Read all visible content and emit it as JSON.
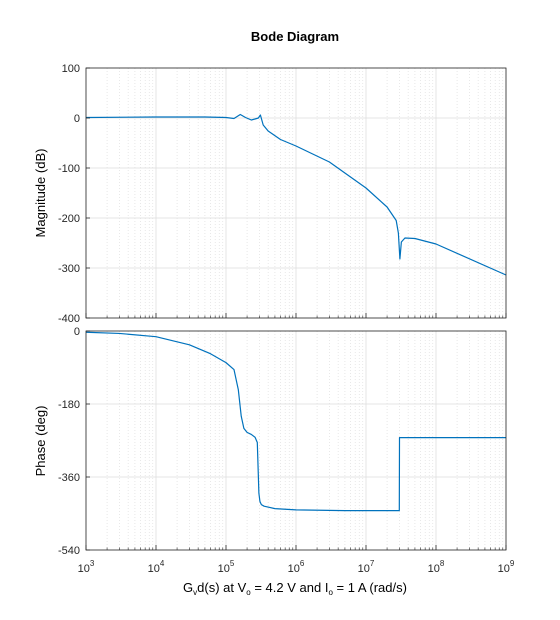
{
  "chart_data": {
    "type": "line",
    "title": "Bode Diagram",
    "x_scale": "log",
    "xlim": [
      1000,
      1000000000
    ],
    "xticks": [
      1000,
      10000,
      100000,
      1000000,
      10000000,
      100000000,
      1000000000
    ],
    "xtick_labels": [
      {
        "base": "10",
        "exp": "3"
      },
      {
        "base": "10",
        "exp": "4"
      },
      {
        "base": "10",
        "exp": "5"
      },
      {
        "base": "10",
        "exp": "6"
      },
      {
        "base": "10",
        "exp": "7"
      },
      {
        "base": "10",
        "exp": "8"
      },
      {
        "base": "10",
        "exp": "9"
      }
    ],
    "xlabel": {
      "p1": "G",
      "s1": "v",
      "p2": "d(s) at V",
      "s2": "o",
      "p3": " = 4.2 V and I",
      "s3": "o",
      "p4": " = 1 A  (rad/s)"
    },
    "grid": true,
    "line_color": "#0072BD",
    "panels": [
      {
        "name": "magnitude",
        "ylabel": "Magnitude (dB)",
        "ylim": [
          -400,
          100
        ],
        "yticks": [
          -400,
          -300,
          -200,
          -100,
          0,
          100
        ],
        "ytick_labels": [
          "-400",
          "-300",
          "-200",
          "-100",
          "0",
          "100"
        ],
        "series": [
          {
            "x": [
              1000,
              10000,
              50000,
              100000,
              130000,
              160000,
              190000,
              230000,
              260000,
              290000,
              310000,
              340000,
              400000,
              600000,
              1000000,
              3000000,
              10000000,
              20000000,
              27000000,
              29000000,
              30500000,
              32000000,
              36000000,
              50000000,
              100000000,
              1000000000
            ],
            "y": [
              1,
              2,
              2,
              1,
              -1,
              7,
              1,
              -4,
              -2,
              0,
              6,
              -14,
              -26,
              -43,
              -56,
              -88,
              -140,
              -178,
              -205,
              -230,
              -282,
              -248,
              -240,
              -241,
              -252,
              -314
            ]
          }
        ]
      },
      {
        "name": "phase",
        "ylabel": "Phase (deg)",
        "ylim": [
          -540,
          0
        ],
        "yticks": [
          -540,
          -360,
          -180,
          0
        ],
        "ytick_labels": [
          "-540",
          "-360",
          "-180",
          "0"
        ],
        "series": [
          {
            "x": [
              1000,
              3000,
              10000,
              30000,
              60000,
              100000,
              130000,
              150000,
              165000,
              180000,
              200000,
              230000,
              260000,
              280000,
              295000,
              305000,
              320000,
              350000,
              500000,
              1000000,
              5000000,
              10000000,
              29000000,
              29900000,
              30100000,
              31000000,
              100000000,
              1000000000
            ],
            "y": [
              -3,
              -6,
              -14,
              -34,
              -56,
              -78,
              -95,
              -145,
              -210,
              -240,
              -250,
              -255,
              -262,
              -275,
              -400,
              -420,
              -428,
              -432,
              -438,
              -441,
              -443,
              -443,
              -443,
              -443,
              -263,
              -263,
              -263,
              -263
            ]
          }
        ]
      }
    ]
  }
}
